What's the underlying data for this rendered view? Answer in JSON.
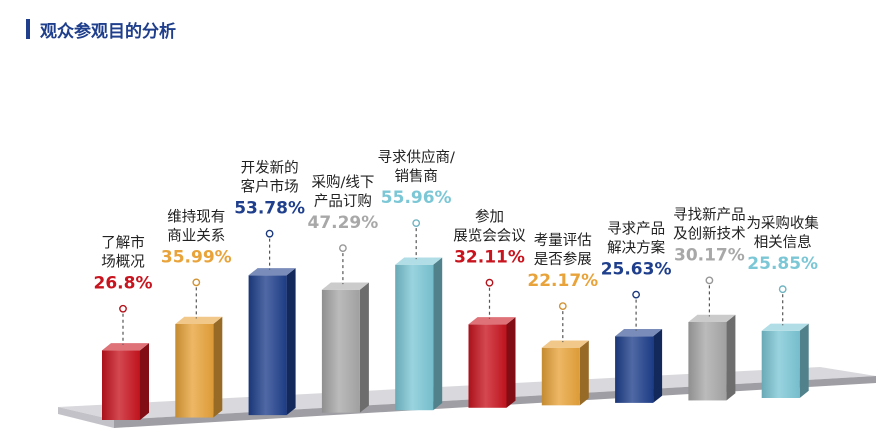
{
  "page": {
    "title": "观众参观目的分析"
  },
  "colors": {
    "red": "#c8141e",
    "orange": "#e8a33a",
    "navy": "#1f3f8c",
    "gray": "#a8a8a8",
    "cyan": "#7cc7d6"
  },
  "chart_data": {
    "type": "bar",
    "title": "观众参观目的分析",
    "unit": "%",
    "categories": [
      [
        "了解市",
        "场概况"
      ],
      [
        "维持现有",
        "商业关系"
      ],
      [
        "开发新的",
        "客户市场"
      ],
      [
        "采购/线下",
        "产品订购"
      ],
      [
        "寻求供应商/",
        "销售商"
      ],
      [
        "参加",
        "展览会会议"
      ],
      [
        "考量评估",
        "是否参展"
      ],
      [
        "寻求产品",
        "解决方案"
      ],
      [
        "寻找新产品",
        "及创新技术"
      ],
      [
        "为采购收集",
        "相关信息"
      ]
    ],
    "values": [
      26.8,
      35.99,
      53.78,
      47.29,
      55.96,
      32.11,
      22.17,
      25.63,
      30.17,
      25.85
    ],
    "value_labels": [
      "26.8%",
      "35.99%",
      "53.78%",
      "47.29%",
      "55.96%",
      "32.11%",
      "22.17%",
      "25.63%",
      "30.17%",
      "25.85%"
    ],
    "bar_colors": [
      "red",
      "orange",
      "navy",
      "gray",
      "cyan",
      "red",
      "orange",
      "navy",
      "gray",
      "cyan"
    ],
    "style": "3d-column"
  }
}
